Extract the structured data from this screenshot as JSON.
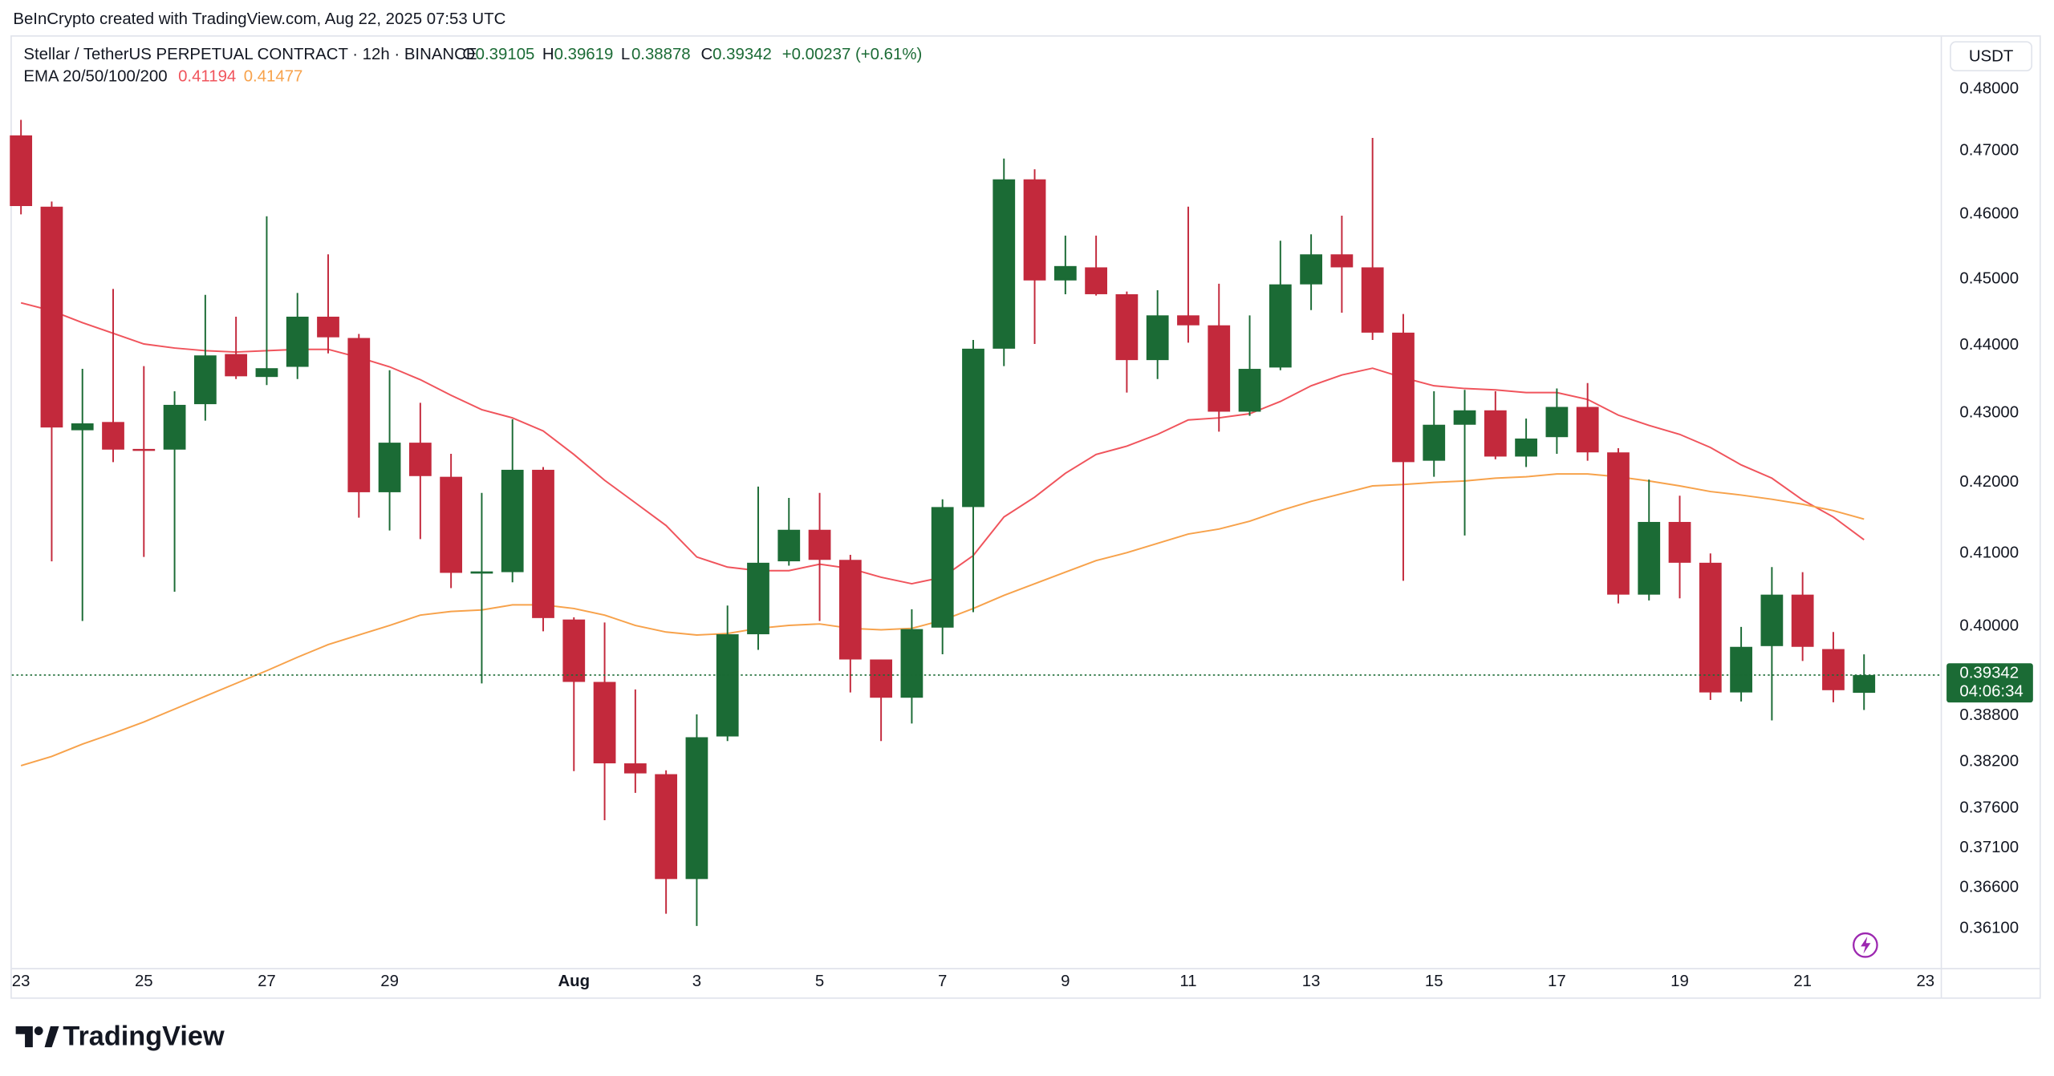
{
  "attribution": "BeInCrypto created with TradingView.com, Aug 22, 2025 07:53 UTC",
  "brand": "TradingView",
  "chart_data": {
    "type": "candlestick",
    "title": "Stellar / TetherUS PERPETUAL CONTRACT · 12h · BINANCE",
    "currency": "USDT",
    "ohlc_labels": [
      "O",
      "H",
      "L",
      "C"
    ],
    "ohlc_values": [
      0.39105,
      0.39619,
      0.38878,
      0.39342
    ],
    "change": "+0.00237 (+0.61%)",
    "indicator_label": "EMA 20/50/100/200",
    "indicator_values": [
      0.41194,
      0.41477
    ],
    "last_price": 0.39342,
    "countdown": "04:06:34",
    "up_color": "#1b6b35",
    "down_color": "#c3293c",
    "log_scale": true,
    "grid": false,
    "categories": [
      "23",
      null,
      null,
      null,
      "25",
      null,
      null,
      null,
      "27",
      null,
      null,
      null,
      "29",
      null,
      null,
      null,
      null,
      null,
      "Aug",
      null,
      null,
      null,
      "3",
      null,
      null,
      null,
      "5",
      null,
      null,
      null,
      "7",
      null,
      null,
      null,
      "9",
      null,
      null,
      null,
      "11",
      null,
      null,
      null,
      "13",
      null,
      null,
      null,
      "15",
      null,
      null,
      null,
      "17",
      null,
      null,
      null,
      "19",
      null,
      null,
      null,
      "21",
      null,
      null,
      null,
      "23"
    ],
    "open": [
      0.4725,
      0.4612,
      0.4275,
      0.4287,
      0.4248,
      0.4247,
      0.4313,
      0.4387,
      0.4353,
      0.4368,
      0.4443,
      0.4411,
      0.4186,
      0.4257,
      0.4208,
      0.4072,
      0.4074,
      0.4218,
      0.4009,
      0.3925,
      0.3818,
      0.3804,
      0.3671,
      0.3853,
      0.3989,
      0.4089,
      0.4133,
      0.4091,
      0.3955,
      0.3904,
      0.3998,
      0.4165,
      0.4395,
      0.4655,
      0.4498,
      0.4518,
      0.4477,
      0.4378,
      0.4445,
      0.443,
      0.4302,
      0.4367,
      0.4492,
      0.4538,
      0.4518,
      0.4419,
      0.4231,
      0.4283,
      0.4304,
      0.4237,
      0.4265,
      0.4309,
      0.4243,
      0.4043,
      0.4144,
      0.4087,
      0.3911,
      0.3973,
      0.4043,
      0.3969,
      0.39105,
      null,
      null
    ],
    "high": [
      0.475,
      0.462,
      0.4365,
      0.4485,
      0.4369,
      0.4332,
      0.4476,
      0.4443,
      0.4597,
      0.4479,
      0.4538,
      0.4417,
      0.4363,
      0.4315,
      0.4241,
      0.4185,
      0.4291,
      0.4222,
      0.4012,
      0.4005,
      0.3915,
      0.3809,
      0.3882,
      0.4028,
      0.4194,
      0.4178,
      0.4185,
      0.4098,
      0.3955,
      0.4023,
      0.4176,
      0.4408,
      0.4688,
      0.4671,
      0.4567,
      0.4567,
      0.4481,
      0.4483,
      0.4612,
      0.4493,
      0.4445,
      0.4559,
      0.4569,
      0.4598,
      0.4721,
      0.4447,
      0.4332,
      0.4334,
      0.4332,
      0.4292,
      0.4336,
      0.4344,
      0.4249,
      0.4204,
      0.4181,
      0.41,
      0.3999,
      0.4081,
      0.4074,
      0.3992,
      0.39619,
      null,
      null
    ],
    "low": [
      0.46,
      0.4089,
      0.4007,
      0.4229,
      0.4095,
      0.4047,
      0.4289,
      0.435,
      0.4341,
      0.435,
      0.4388,
      0.415,
      0.4132,
      0.412,
      0.4052,
      0.3923,
      0.406,
      0.3993,
      0.3808,
      0.3745,
      0.378,
      0.3628,
      0.3613,
      0.3847,
      0.3968,
      0.4083,
      0.4007,
      0.3911,
      0.3847,
      0.387,
      0.3962,
      0.4019,
      0.4369,
      0.4402,
      0.4477,
      0.4475,
      0.433,
      0.435,
      0.4404,
      0.4273,
      0.4296,
      0.4363,
      0.4453,
      0.4449,
      0.4408,
      0.4062,
      0.4208,
      0.4125,
      0.4233,
      0.4222,
      0.4241,
      0.4231,
      0.4031,
      0.4035,
      0.4038,
      0.3901,
      0.3899,
      0.3874,
      0.3953,
      0.3898,
      0.38878,
      null,
      null
    ],
    "close": [
      0.4613,
      0.4279,
      0.4285,
      0.4247,
      0.4246,
      0.4312,
      0.4385,
      0.4354,
      0.4366,
      0.4443,
      0.4412,
      0.4186,
      0.4257,
      0.4209,
      0.4073,
      0.4075,
      0.4218,
      0.4011,
      0.3925,
      0.3818,
      0.3805,
      0.3671,
      0.3852,
      0.3989,
      0.4087,
      0.4133,
      0.4091,
      0.3955,
      0.3904,
      0.3996,
      0.4165,
      0.4395,
      0.4655,
      0.4498,
      0.452,
      0.4477,
      0.4378,
      0.4445,
      0.443,
      0.4302,
      0.4365,
      0.4492,
      0.4538,
      0.4518,
      0.4419,
      0.4229,
      0.4283,
      0.4304,
      0.4237,
      0.4263,
      0.4309,
      0.4243,
      0.4043,
      0.4144,
      0.4087,
      0.3911,
      0.3972,
      0.4043,
      0.3972,
      0.3914,
      0.39342,
      null,
      null
    ],
    "overlays": [
      {
        "color": "#f0545c",
        "values": [
          0.4464,
          0.4452,
          0.4434,
          0.4418,
          0.4402,
          0.4396,
          0.4392,
          0.439,
          0.4392,
          0.4394,
          0.4394,
          0.4382,
          0.4368,
          0.4349,
          0.4326,
          0.4305,
          0.4293,
          0.4274,
          0.424,
          0.4203,
          0.4171,
          0.4139,
          0.4095,
          0.4081,
          0.4076,
          0.4076,
          0.4085,
          0.4079,
          0.4067,
          0.4058,
          0.4067,
          0.4097,
          0.4151,
          0.4179,
          0.4213,
          0.424,
          0.4252,
          0.4269,
          0.429,
          0.4293,
          0.4299,
          0.4317,
          0.434,
          0.4356,
          0.4366,
          0.4352,
          0.434,
          0.4336,
          0.4334,
          0.433,
          0.433,
          0.432,
          0.4297,
          0.4282,
          0.4269,
          0.425,
          0.4225,
          0.4206,
          0.4175,
          0.4151,
          0.4119,
          null,
          null
        ]
      },
      {
        "color": "#f7a24b",
        "values": [
          0.3815,
          0.3827,
          0.3843,
          0.3857,
          0.3872,
          0.3889,
          0.3906,
          0.3923,
          0.394,
          0.3958,
          0.3975,
          0.3988,
          0.4001,
          0.4015,
          0.402,
          0.4022,
          0.4029,
          0.4029,
          0.4024,
          0.4015,
          0.4001,
          0.3992,
          0.3988,
          0.399,
          0.3997,
          0.4001,
          0.4003,
          0.3997,
          0.3995,
          0.3997,
          0.4008,
          0.4024,
          0.4042,
          0.4058,
          0.4074,
          0.409,
          0.4101,
          0.4114,
          0.4127,
          0.4134,
          0.4145,
          0.416,
          0.4173,
          0.4184,
          0.4195,
          0.4197,
          0.42,
          0.4202,
          0.4206,
          0.4208,
          0.4212,
          0.4212,
          0.4208,
          0.4202,
          0.4195,
          0.4187,
          0.4182,
          0.4176,
          0.4169,
          0.416,
          0.4148,
          null,
          null
        ]
      }
    ],
    "ylim": [
      0.3561,
      0.4886
    ],
    "yticks": [
      {
        "value": 0.48,
        "label": "0.48000"
      },
      {
        "value": 0.47,
        "label": "0.47000"
      },
      {
        "value": 0.46,
        "label": "0.46000"
      },
      {
        "value": 0.45,
        "label": "0.45000"
      },
      {
        "value": 0.44,
        "label": "0.44000"
      },
      {
        "value": 0.43,
        "label": "0.43000"
      },
      {
        "value": 0.42,
        "label": "0.42000"
      },
      {
        "value": 0.41,
        "label": "0.41000"
      },
      {
        "value": 0.4,
        "label": "0.40000"
      },
      {
        "value": 0.388,
        "label": "0.38800"
      },
      {
        "value": 0.382,
        "label": "0.38200"
      },
      {
        "value": 0.376,
        "label": "0.37600"
      },
      {
        "value": 0.371,
        "label": "0.37100"
      },
      {
        "value": 0.366,
        "label": "0.36600"
      },
      {
        "value": 0.361,
        "label": "0.36100"
      }
    ]
  }
}
